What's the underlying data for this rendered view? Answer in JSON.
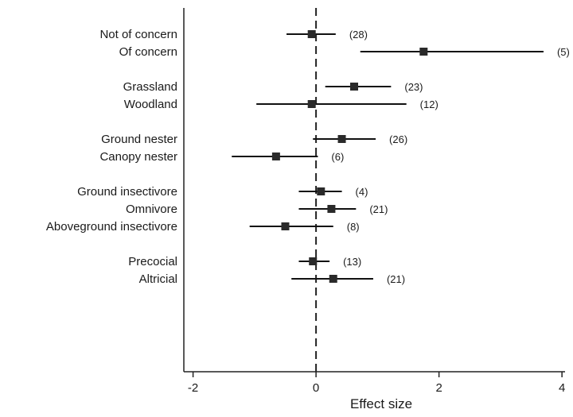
{
  "chart_data": {
    "type": "forest",
    "title": "",
    "xlabel": "Effect size",
    "ylabel": "",
    "xlim": [
      -2.15,
      4.05
    ],
    "xticks": [
      -2,
      0,
      2,
      4
    ],
    "reference_line": 0,
    "grid": false,
    "groups": [
      {
        "rows": [
          {
            "label": "Not of concern",
            "estimate": -0.07,
            "ci": [
              -0.48,
              0.32
            ],
            "n": "(28)"
          },
          {
            "label": "Of concern",
            "estimate": 1.75,
            "ci": [
              0.72,
              3.7
            ],
            "n": "(5)"
          }
        ]
      },
      {
        "rows": [
          {
            "label": "Grassland",
            "estimate": 0.62,
            "ci": [
              0.15,
              1.22
            ],
            "n": "(23)"
          },
          {
            "label": "Woodland",
            "estimate": -0.07,
            "ci": [
              -0.97,
              1.47
            ],
            "n": "(12)"
          }
        ]
      },
      {
        "rows": [
          {
            "label": "Ground nester",
            "estimate": 0.42,
            "ci": [
              -0.05,
              0.97
            ],
            "n": "(26)"
          },
          {
            "label": "Canopy nester",
            "estimate": -0.65,
            "ci": [
              -1.37,
              0.03
            ],
            "n": "(6)"
          }
        ]
      },
      {
        "rows": [
          {
            "label": "Ground insectivore",
            "estimate": 0.08,
            "ci": [
              -0.28,
              0.42
            ],
            "n": "(4)"
          },
          {
            "label": "Omnivore",
            "estimate": 0.25,
            "ci": [
              -0.28,
              0.65
            ],
            "n": "(21)"
          },
          {
            "label": "Aboveground insectivore",
            "estimate": -0.5,
            "ci": [
              -1.08,
              0.28
            ],
            "n": "(8)"
          }
        ]
      },
      {
        "rows": [
          {
            "label": "Precocial",
            "estimate": -0.05,
            "ci": [
              -0.28,
              0.22
            ],
            "n": "(13)"
          },
          {
            "label": "Altricial",
            "estimate": 0.28,
            "ci": [
              -0.4,
              0.93
            ],
            "n": "(21)"
          }
        ]
      }
    ]
  }
}
